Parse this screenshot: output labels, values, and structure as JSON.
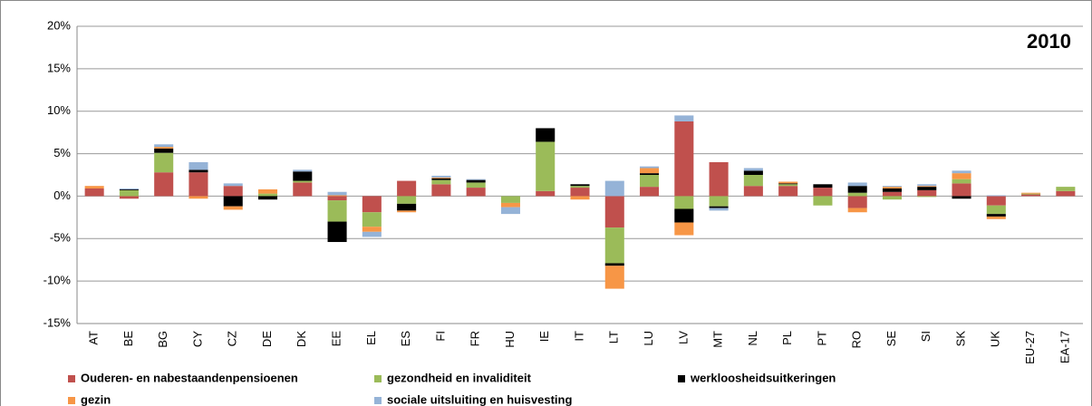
{
  "chart_data": {
    "type": "stacked_bar",
    "annotation": "2010",
    "categories": [
      "AT",
      "BE",
      "BG",
      "CY",
      "CZ",
      "DE",
      "DK",
      "EE",
      "EL",
      "ES",
      "FI",
      "FR",
      "HU",
      "IE",
      "IT",
      "LT",
      "LU",
      "LV",
      "MT",
      "NL",
      "PL",
      "PT",
      "RO",
      "SE",
      "SI",
      "SK",
      "UK",
      "EU-27",
      "EA-17"
    ],
    "series": [
      {
        "name": "Ouderen- en nabestaandenpensioenen",
        "color": "#c0504d",
        "values": [
          0.9,
          -0.3,
          2.8,
          2.8,
          1.2,
          0,
          1.6,
          -0.5,
          -1.9,
          1.8,
          1.4,
          1.0,
          0,
          0.6,
          1.0,
          -3.7,
          1.1,
          8.8,
          4.0,
          1.2,
          1.2,
          1.0,
          -1.4,
          0.5,
          0.7,
          1.5,
          -1.1,
          0.2,
          0.6
        ]
      },
      {
        "name": "gezondheid en invaliditeit",
        "color": "#9bbb59",
        "values": [
          0,
          0.7,
          2.3,
          0,
          0,
          0.3,
          0.2,
          -2.5,
          -1.7,
          -0.9,
          0.5,
          0.6,
          -0.8,
          5.8,
          0.2,
          -4.2,
          1.4,
          -1.5,
          -1.2,
          1.3,
          0.2,
          -1.1,
          0.4,
          -0.4,
          -0.1,
          0.5,
          -1.0,
          0.1,
          0.5
        ]
      },
      {
        "name": "werkloosheidsuitkeringen",
        "color": "#000000",
        "values": [
          0,
          0.1,
          0.5,
          0.3,
          -1.2,
          -0.4,
          1.1,
          -2.4,
          0,
          -0.8,
          0.2,
          0.3,
          0,
          1.6,
          0.2,
          -0.3,
          0.2,
          -1.6,
          -0.2,
          0.5,
          0.1,
          0.4,
          0.8,
          0.4,
          0.4,
          -0.3,
          -0.3,
          0,
          0
        ]
      },
      {
        "name": "gezin",
        "color": "#f79646",
        "values": [
          0.3,
          0,
          0.2,
          -0.3,
          -0.4,
          0.5,
          0,
          0.1,
          -0.6,
          -0.2,
          0.1,
          0,
          -0.5,
          0,
          -0.4,
          -2.7,
          0.6,
          -1.5,
          0,
          0,
          0.2,
          0,
          -0.5,
          0.2,
          0.1,
          0.7,
          -0.3,
          0.1,
          0
        ]
      },
      {
        "name": "sociale uitsluiting en huisvesting",
        "color": "#95b3d7",
        "values": [
          0,
          0.1,
          0.3,
          0.9,
          0.3,
          0,
          0.2,
          0.4,
          -0.6,
          0,
          0.2,
          0.1,
          -0.8,
          0,
          0,
          1.8,
          0.2,
          0.7,
          -0.3,
          0.3,
          0,
          0,
          0.4,
          0.1,
          0.2,
          0.3,
          0.1,
          0,
          0
        ]
      }
    ],
    "ylim": [
      -15,
      20
    ],
    "yticks": [
      {
        "value": -15,
        "label": "-15%"
      },
      {
        "value": -10,
        "label": "-10%"
      },
      {
        "value": -5,
        "label": "-5%"
      },
      {
        "value": 0,
        "label": "0%"
      },
      {
        "value": 5,
        "label": "5%"
      },
      {
        "value": 10,
        "label": "10%"
      },
      {
        "value": 15,
        "label": "15%"
      },
      {
        "value": 20,
        "label": "20%"
      }
    ],
    "grid": true
  }
}
